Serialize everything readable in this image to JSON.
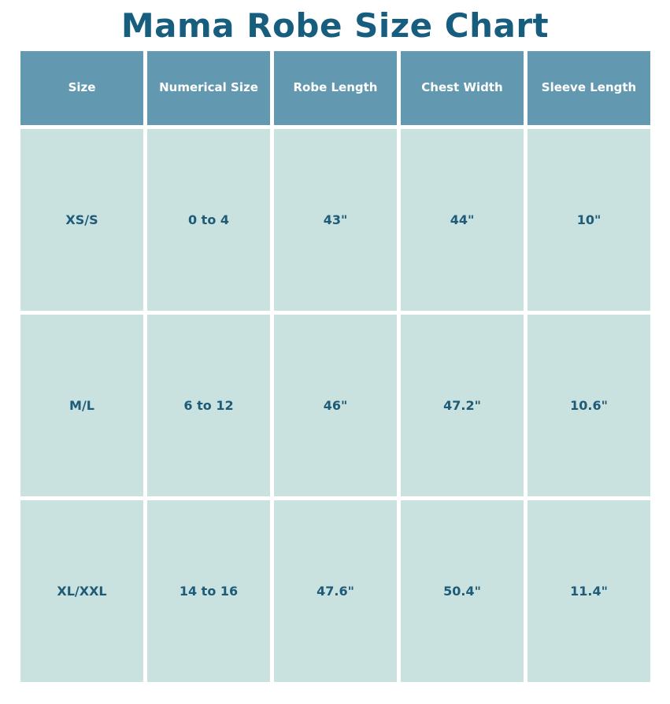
{
  "title": "Mama Robe Size Chart",
  "colors": {
    "title": "#175e7e",
    "header_bg": "#6399b0",
    "cell_bg": "#c9e2df",
    "cell_text": "#1d5b78"
  },
  "headers": [
    "Size",
    "Numerical Size",
    "Robe Length",
    "Chest Width",
    "Sleeve Length"
  ],
  "rows": [
    [
      "XS/S",
      "0 to 4",
      "43\"",
      "44\"",
      "10\""
    ],
    [
      "M/L",
      "6 to 12",
      "46\"",
      "47.2\"",
      "10.6\""
    ],
    [
      "XL/XXL",
      "14 to 16",
      "47.6\"",
      "50.4\"",
      "11.4\""
    ]
  ]
}
